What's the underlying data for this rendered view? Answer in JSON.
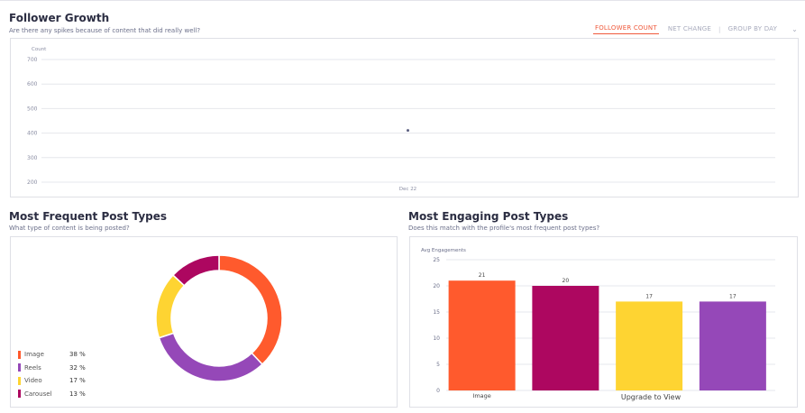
{
  "follower_growth": {
    "title": "Follower Growth",
    "subtitle": "Are there any spikes because of content that did really well?",
    "controls": {
      "follower_count": "FOLLOWER COUNT",
      "net_change": "NET CHANGE",
      "separator": "|",
      "group_by_day": "GROUP BY DAY"
    }
  },
  "frequent": {
    "title": "Most Frequent Post Types",
    "subtitle": "What type of content is being posted?"
  },
  "engaging": {
    "title": "Most Engaging Post Types",
    "subtitle": "Does this match with the profile's most frequent post types?",
    "upgrade_label": "Upgrade to View"
  },
  "chart_data": [
    {
      "type": "scatter",
      "ylabel": "Count",
      "ylim": [
        200,
        700
      ],
      "yticks": [
        700,
        600,
        500,
        400,
        300,
        200
      ],
      "x_ticks": [
        "Dec 22"
      ],
      "points": [
        {
          "x": "Dec 22",
          "y": 411
        }
      ],
      "grid": true,
      "point_color": "#5b5f80"
    },
    {
      "type": "pie",
      "donut": true,
      "categories": [
        "Image",
        "Reels",
        "Video",
        "Carousel"
      ],
      "values": [
        38,
        32,
        17,
        13
      ],
      "value_labels": [
        "38 %",
        "32 %",
        "17 %",
        "13 %"
      ],
      "colors": [
        "#ff5a2d",
        "#9548b8",
        "#fed432",
        "#ad0760"
      ],
      "legend": "bottom-left"
    },
    {
      "type": "bar",
      "ylabel": "Avg Engagements",
      "ylim": [
        0,
        25
      ],
      "yticks": [
        25,
        20,
        15,
        10,
        5,
        0
      ],
      "categories": [
        "Image",
        "",
        "",
        ""
      ],
      "values": [
        21,
        20,
        17,
        17
      ],
      "value_labels": [
        "21",
        "20",
        "17",
        "17"
      ],
      "colors": [
        "#ff5a2d",
        "#ad0760",
        "#fed432",
        "#9548b8"
      ],
      "grid": true
    }
  ]
}
